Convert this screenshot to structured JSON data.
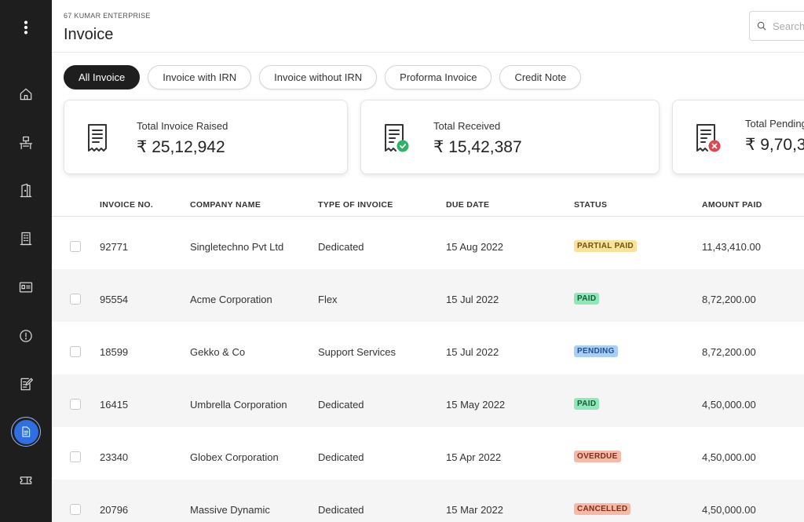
{
  "header": {
    "company": "67 KUMAR ENTERPRISE",
    "title": "Invoice",
    "search_placeholder": "Search"
  },
  "sidebar": {
    "items": [
      {
        "name": "menu",
        "icon": "kebab-menu-icon"
      },
      {
        "name": "home",
        "icon": "home-icon"
      },
      {
        "name": "workspace",
        "icon": "desk-icon"
      },
      {
        "name": "doors",
        "icon": "door-icon"
      },
      {
        "name": "building",
        "icon": "building-icon"
      },
      {
        "name": "id-card",
        "icon": "id-card-icon"
      },
      {
        "name": "alerts",
        "icon": "alert-icon"
      },
      {
        "name": "notes",
        "icon": "edit-note-icon"
      },
      {
        "name": "invoice",
        "icon": "document-icon",
        "active": true
      },
      {
        "name": "tickets",
        "icon": "ticket-icon"
      }
    ],
    "accent_color": "#2f6fe0"
  },
  "tabs": [
    {
      "label": "All Invoice",
      "active": true
    },
    {
      "label": "Invoice with IRN",
      "active": false
    },
    {
      "label": "Invoice without IRN",
      "active": false
    },
    {
      "label": "Proforma Invoice",
      "active": false
    },
    {
      "label": "Credit Note",
      "active": false
    }
  ],
  "cards": [
    {
      "label": "Total Invoice Raised",
      "value": "₹ 25,12,942",
      "icon": "receipt-icon"
    },
    {
      "label": "Total Received",
      "value": "₹ 15,42,387",
      "icon": "receipt-check-icon",
      "icon_color": "#2db36a"
    },
    {
      "label": "Total Pending",
      "value": "₹ 9,70,3",
      "icon": "receipt-cross-icon",
      "icon_color": "#e2454f"
    }
  ],
  "table": {
    "columns": [
      "INVOICE NO.",
      "COMPANY NAME",
      "TYPE OF INVOICE",
      "DUE DATE",
      "STATUS",
      "AMOUNT PAID"
    ],
    "rows": [
      {
        "invoice": "92771",
        "company": "Singletechno Pvt Ltd",
        "type": "Dedicated",
        "due": "15 Aug 2022",
        "status": "PARTIAL PAID",
        "amount": "11,43,410.00"
      },
      {
        "invoice": "95554",
        "company": "Acme Corporation",
        "type": "Flex",
        "due": "15 Jul 2022",
        "status": "PAID",
        "amount": "8,72,200.00"
      },
      {
        "invoice": "18599",
        "company": "Gekko & Co",
        "type": "Support Services",
        "due": "15 Jul 2022",
        "status": "PENDING",
        "amount": "8,72,200.00"
      },
      {
        "invoice": "16415",
        "company": "Umbrella Corporation",
        "type": "Dedicated",
        "due": "15 May 2022",
        "status": "PAID",
        "amount": "4,50,000.00"
      },
      {
        "invoice": "23340",
        "company": "Globex Corporation",
        "type": "Dedicated",
        "due": "15 Apr 2022",
        "status": "OVERDUE",
        "amount": "4,50,000.00"
      },
      {
        "invoice": "20796",
        "company": "Massive Dynamic",
        "type": "Dedicated",
        "due": "15 Mar 2022",
        "status": "CANCELLED",
        "amount": "4,50,000.00"
      }
    ]
  },
  "status_colors": {
    "PARTIAL PAID": {
      "bg": "#fbe29a",
      "fg": "#6b5410"
    },
    "PAID": {
      "bg": "#8ee8b8",
      "fg": "#145c35"
    },
    "PENDING": {
      "bg": "#a9cff8",
      "fg": "#1d4f8a"
    },
    "OVERDUE": {
      "bg": "#f6b9a6",
      "fg": "#7a2e18"
    },
    "CANCELLED": {
      "bg": "#f6b9a6",
      "fg": "#7a2e18"
    }
  }
}
